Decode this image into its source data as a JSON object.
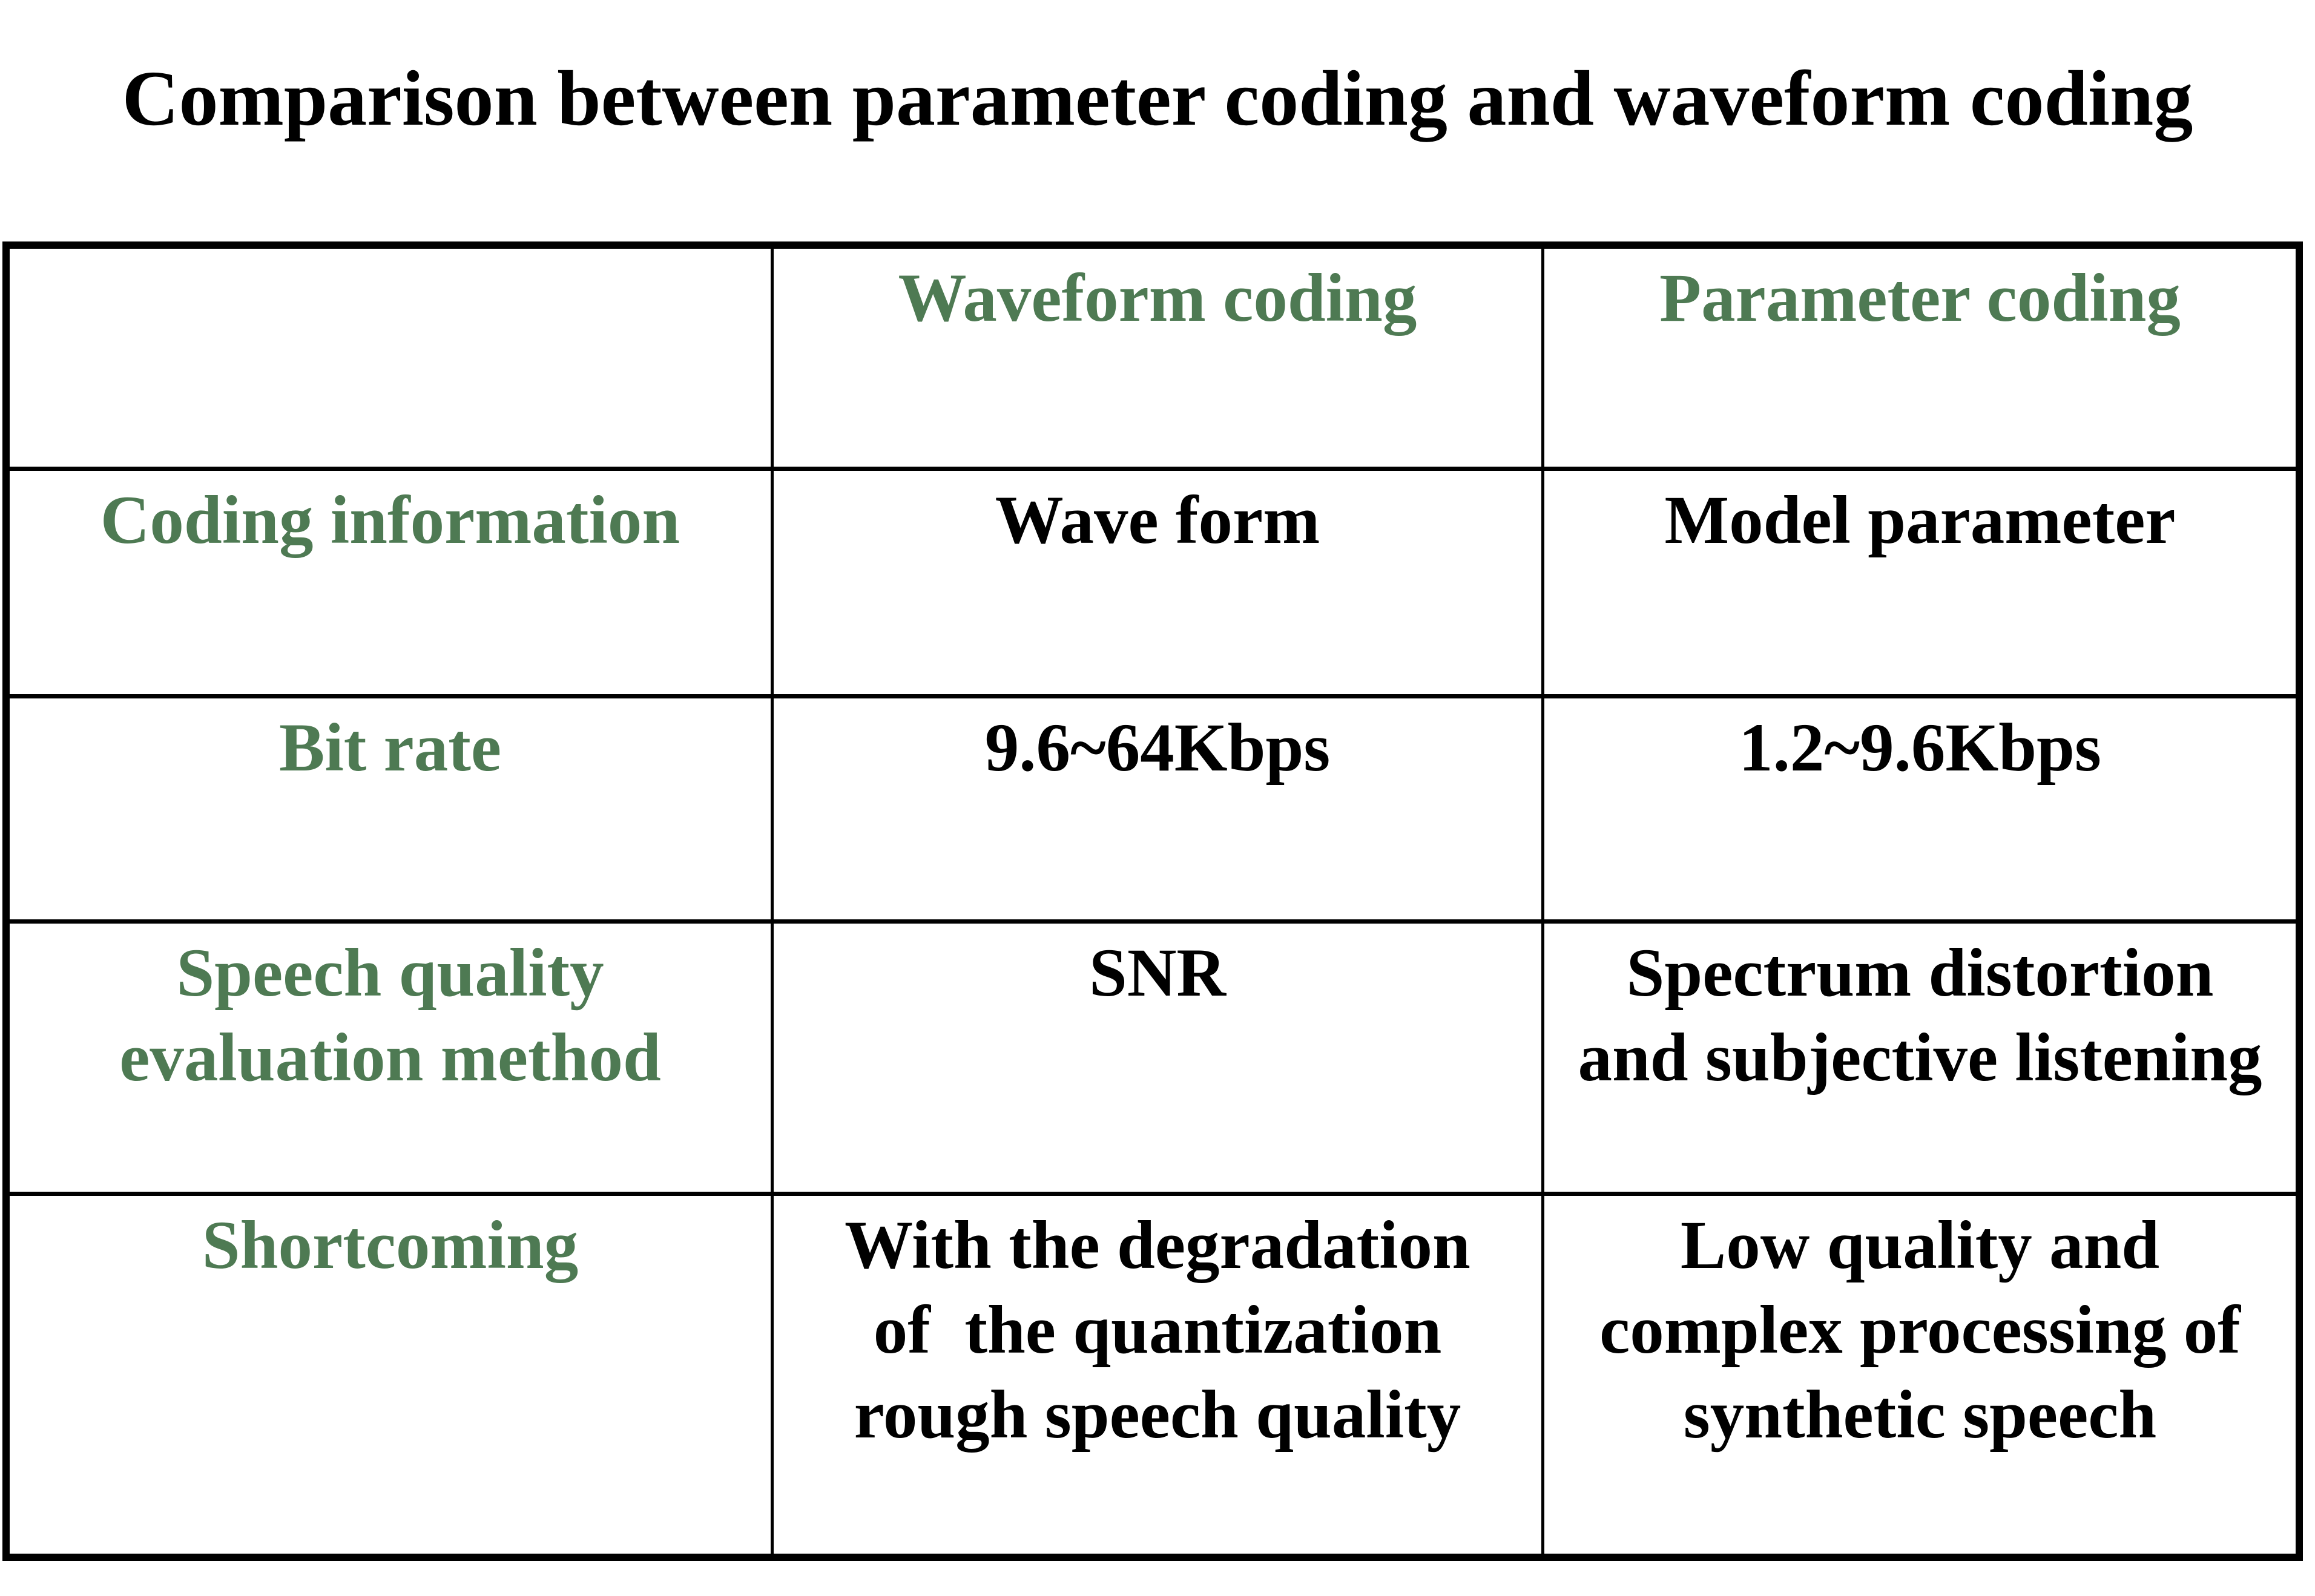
{
  "title": "Comparison between parameter coding and waveform coding",
  "colors": {
    "accent_green": "#4e7a53",
    "text_black": "#000000",
    "border_black": "#000000",
    "background": "#ffffff"
  },
  "table": {
    "header": [
      "",
      "Waveform coding",
      "Parameter coding"
    ],
    "rows": [
      {
        "label": "Coding information",
        "waveform": "Wave form",
        "parameter": "Model parameter"
      },
      {
        "label": "Bit rate",
        "waveform": "9.6~64Kbps",
        "parameter": "1.2~9.6Kbps"
      },
      {
        "label": "Speech quality\nevaluation method",
        "waveform": "SNR",
        "parameter": "Spectrum distortion\nand subjective listening"
      },
      {
        "label": "Shortcoming",
        "waveform": "With the degradation\nof  the quantization\nrough speech quality",
        "parameter": "Low quality and\ncomplex processing of\nsynthetic speech"
      }
    ]
  }
}
